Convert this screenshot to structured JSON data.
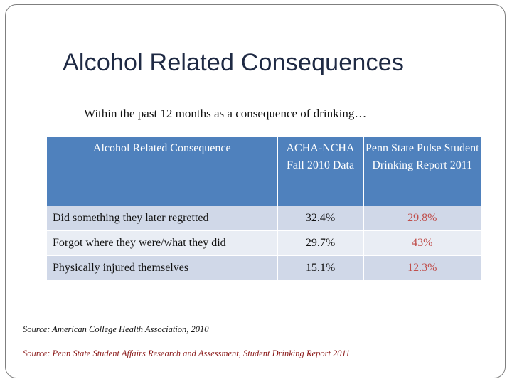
{
  "slide": {
    "title": "Alcohol Related Consequences",
    "subtitle": "Within the past 12 months as a consequence of drinking…"
  },
  "table": {
    "headers": [
      "Alcohol Related Consequence",
      "ACHA-NCHA Fall 2010 Data",
      "Penn State Pulse Student Drinking Report 2011"
    ],
    "rows": [
      {
        "label": "Did something they later regretted",
        "acha": "32.4%",
        "psu": "29.8%"
      },
      {
        "label": "Forgot where they were/what they did",
        "acha": "29.7%",
        "psu": "43%"
      },
      {
        "label": "Physically injured themselves",
        "acha": "15.1%",
        "psu": "12.3%"
      }
    ]
  },
  "sources": {
    "acha": "Source: American College Health Association, 2010",
    "psu": "Source: Penn State Student Affairs Research and Assessment, Student Drinking Report 2011"
  },
  "colors": {
    "header_bg": "#4f81bd",
    "row_odd": "#d0d8e8",
    "row_even": "#e9edf4",
    "highlight": "#c0504d",
    "title": "#1f2a44"
  }
}
